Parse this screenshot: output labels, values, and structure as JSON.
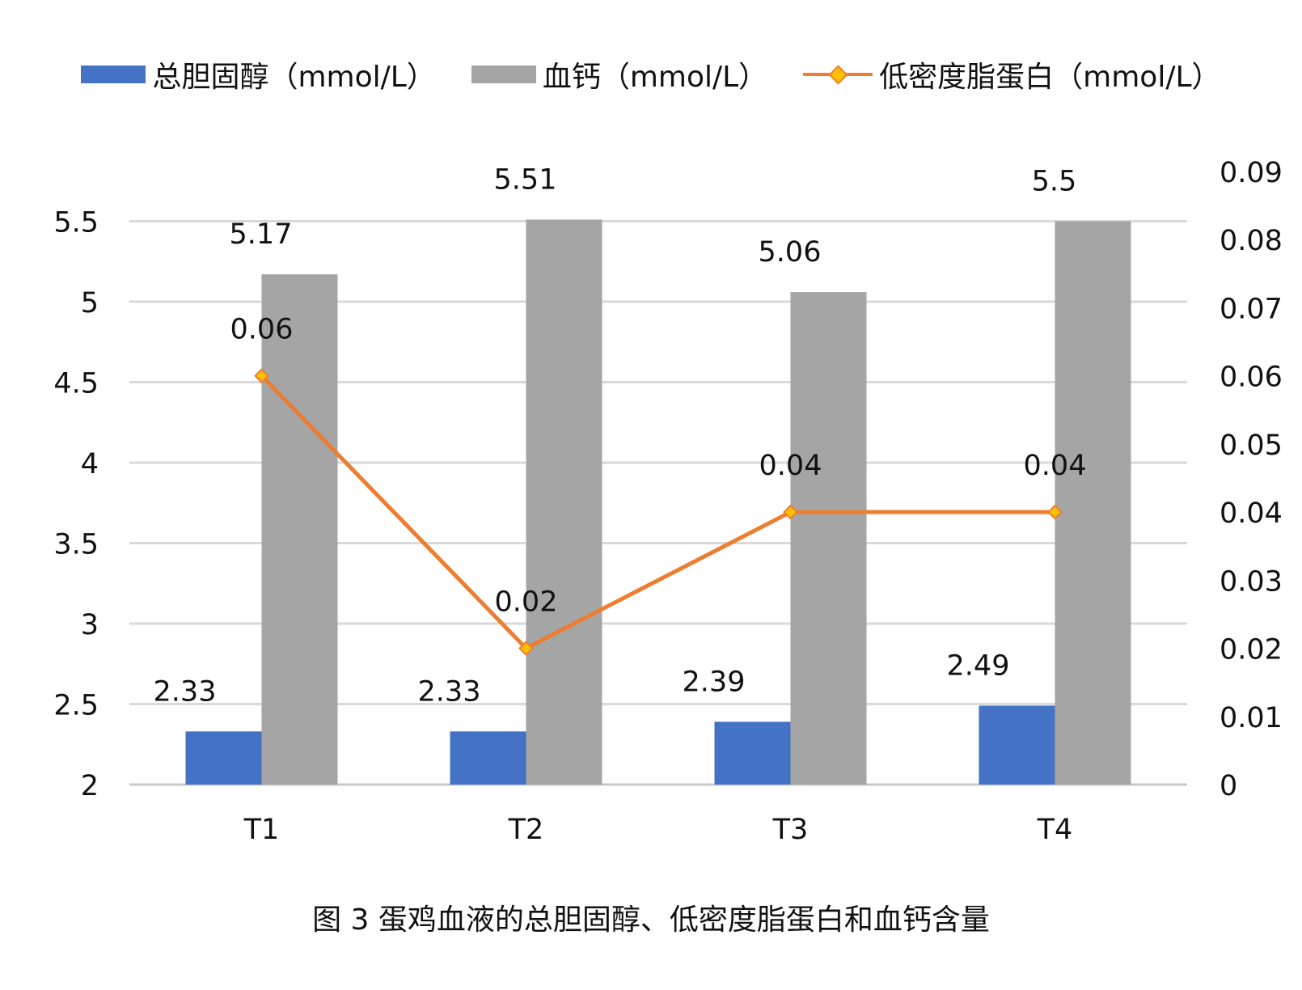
{
  "chart_data": {
    "type": "bar",
    "categories": [
      "T1",
      "T2",
      "T3",
      "T4"
    ],
    "series": [
      {
        "name": "总胆固醇（mmol/L）",
        "type": "bar",
        "axis": "left",
        "color": "#4472C4",
        "values": [
          2.33,
          2.33,
          2.39,
          2.49
        ]
      },
      {
        "name": "血钙（mmol/L）",
        "type": "bar",
        "axis": "left",
        "color": "#A5A5A5",
        "values": [
          5.17,
          5.51,
          5.06,
          5.5
        ]
      },
      {
        "name": "低密度脂蛋白（mmol/L）",
        "type": "line",
        "axis": "right",
        "color": "#ED7D31",
        "marker_color": "#FFC000",
        "values": [
          0.06,
          0.02,
          0.04,
          0.04
        ]
      }
    ],
    "y_left": {
      "min": 2,
      "max": 5.5,
      "ticks": [
        "2",
        "2.5",
        "3",
        "3.5",
        "4",
        "4.5",
        "5",
        "5.5"
      ]
    },
    "y_right": {
      "min": 0,
      "max": 0.09,
      "ticks": [
        "0",
        "0.01",
        "0.02",
        "0.03",
        "0.04",
        "0.05",
        "0.06",
        "0.07",
        "0.08",
        "0.09"
      ]
    },
    "bar_labels": [
      [
        "2.33",
        "2.33",
        "2.39",
        "2.49"
      ],
      [
        "5.17",
        "5.51",
        "5.06",
        "5.5"
      ]
    ],
    "line_labels": [
      "0.06",
      "0.02",
      "0.04",
      "0.04"
    ],
    "grid": true,
    "legend_position": "top"
  },
  "caption": "图 3  蛋鸡血液的总胆固醇、低密度脂蛋白和血钙含量"
}
